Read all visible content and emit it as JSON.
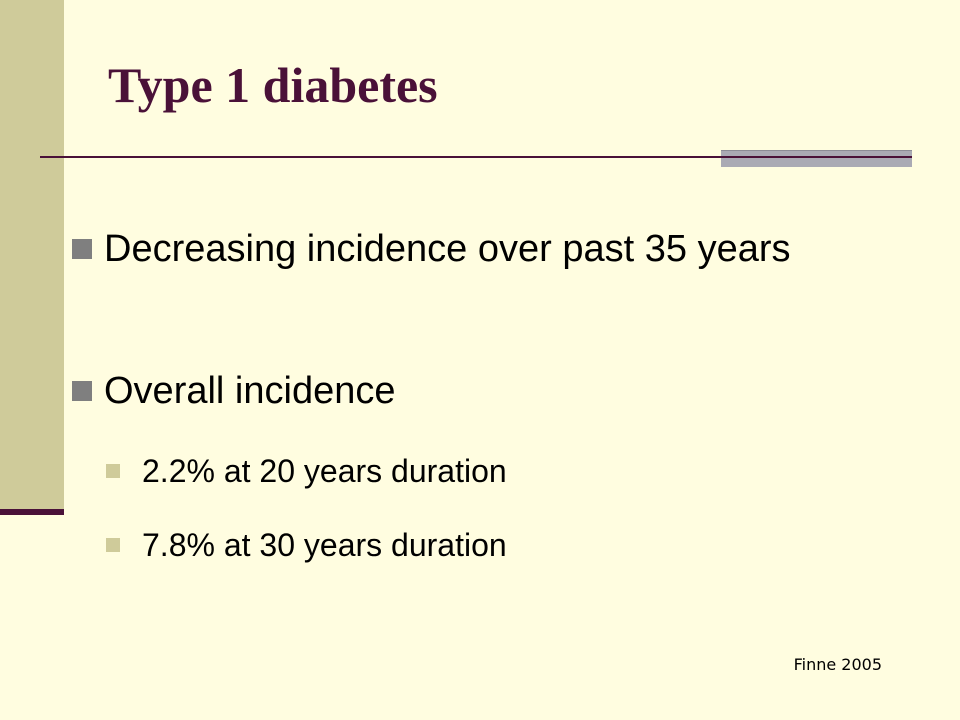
{
  "slide": {
    "title": "Type 1 diabetes",
    "bullets": [
      {
        "text": "Decreasing incidence over past 35 years"
      },
      {
        "text": "Overall incidence"
      }
    ],
    "sub_bullets": [
      {
        "text": "2.2% at 20 years duration"
      },
      {
        "text": "7.8% at 30 years duration"
      }
    ],
    "citation": "Finne 2005"
  },
  "colors": {
    "background": "#FFFDE0",
    "side_bar": "#CFCB9A",
    "title": "#4A1138",
    "bullet_marker_level1": "#7F7F7F",
    "bullet_marker_level2": "#CFCB9A"
  }
}
